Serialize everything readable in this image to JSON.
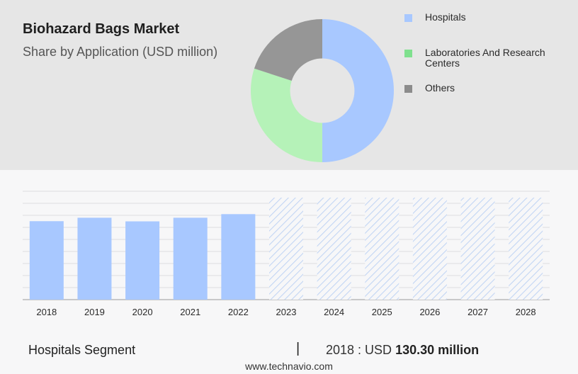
{
  "header": {
    "title": "Biohazard Bags Market",
    "subtitle": "Share by Application (USD million)"
  },
  "legend": [
    {
      "label": "Hospitals",
      "color": "#a8c8ff"
    },
    {
      "label": "Laboratories And Research Centers",
      "color": "#7fe08e"
    },
    {
      "label": "Others",
      "color": "#8c8c8c"
    }
  ],
  "footer": {
    "segment": "Hospitals Segment",
    "separator": "|",
    "year_value": "2018 : USD",
    "value": "130.30 million",
    "source": "www.technavio.com"
  },
  "chart_data": [
    {
      "type": "pie",
      "title": "",
      "labels": [
        "Hospitals",
        "Laboratories And Research Centers",
        "Others"
      ],
      "values": [
        50,
        30,
        20
      ],
      "colors": [
        "#a8c8ff",
        "#b5f2b8",
        "#969696"
      ],
      "hole": 0.45
    },
    {
      "type": "bar",
      "categories": [
        "2018",
        "2019",
        "2020",
        "2021",
        "2022",
        "2023",
        "2024",
        "2025",
        "2026",
        "2027",
        "2028"
      ],
      "series": [
        {
          "values": [
            130.3,
            136.0,
            130.0,
            136.0,
            142.0,
            null,
            null,
            null,
            null,
            null,
            null
          ]
        }
      ],
      "forecast_categories": [
        "2023",
        "2024",
        "2025",
        "2026",
        "2027",
        "2028"
      ],
      "bar_color": "#a8c8ff",
      "forecast_color": "#c6d8f5",
      "ylim": [
        0,
        180
      ],
      "grid": true
    }
  ]
}
